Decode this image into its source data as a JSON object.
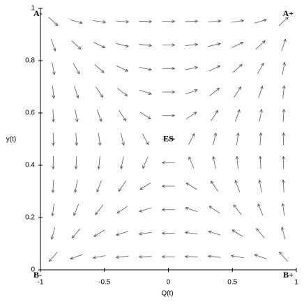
{
  "chart_data": {
    "type": "direction-field",
    "xlabel": "Q(t)",
    "ylabel": "y(t)",
    "xlim": [
      -1,
      1
    ],
    "ylim": [
      0,
      1
    ],
    "xticks": [
      -1,
      -0.5,
      0,
      0.5,
      1
    ],
    "yticks": [
      0,
      0.2,
      0.4,
      0.6,
      0.8,
      1
    ],
    "arrow_color": "#555555",
    "grid_x": [
      -0.9,
      -0.72,
      -0.54,
      -0.36,
      -0.18,
      0,
      0.18,
      0.36,
      0.54,
      0.72,
      0.9
    ],
    "grid_y": [
      0.05,
      0.14,
      0.23,
      0.32,
      0.41,
      0.5,
      0.59,
      0.68,
      0.77,
      0.86,
      0.95
    ],
    "angles": [
      [
        -151,
        -170,
        -175,
        -177,
        -179,
        180,
        179,
        177,
        175,
        170,
        151
      ],
      [
        -118,
        -150,
        -163,
        -171,
        -176,
        180,
        176,
        171,
        163,
        150,
        118
      ],
      [
        -105,
        -130,
        -148,
        -162,
        -171,
        180,
        171,
        162,
        148,
        130,
        105
      ],
      [
        -97,
        -112,
        -128,
        -145,
        -163,
        180,
        163,
        145,
        128,
        112,
        97
      ],
      [
        -92,
        -96,
        -102,
        -112,
        -132,
        180,
        132,
        112,
        102,
        96,
        92
      ],
      [
        -88,
        -82,
        -75,
        -64,
        -43,
        0,
        43,
        64,
        75,
        82,
        88
      ],
      [
        -83,
        -69,
        -53,
        -36,
        -18,
        0,
        18,
        36,
        53,
        69,
        83
      ],
      [
        -77,
        -55,
        -36,
        -21,
        -10,
        0,
        10,
        21,
        36,
        55,
        77
      ],
      [
        -69,
        -40,
        -23,
        -13,
        -6,
        0,
        6,
        13,
        23,
        40,
        69
      ],
      [
        -54,
        -24,
        -13,
        -7,
        -3,
        0,
        3,
        7,
        13,
        24,
        54
      ],
      [
        -24,
        -8,
        -4,
        -2,
        -1,
        0,
        1,
        2,
        4,
        8,
        24
      ]
    ],
    "points": [
      {
        "label": "A-",
        "x": -1,
        "y": 1
      },
      {
        "label": "A+",
        "x": 1,
        "y": 1
      },
      {
        "label": "B-",
        "x": -1,
        "y": 0
      },
      {
        "label": "B+",
        "x": 1,
        "y": 0
      },
      {
        "label": "ES",
        "x": 0,
        "y": 0.5
      }
    ]
  }
}
